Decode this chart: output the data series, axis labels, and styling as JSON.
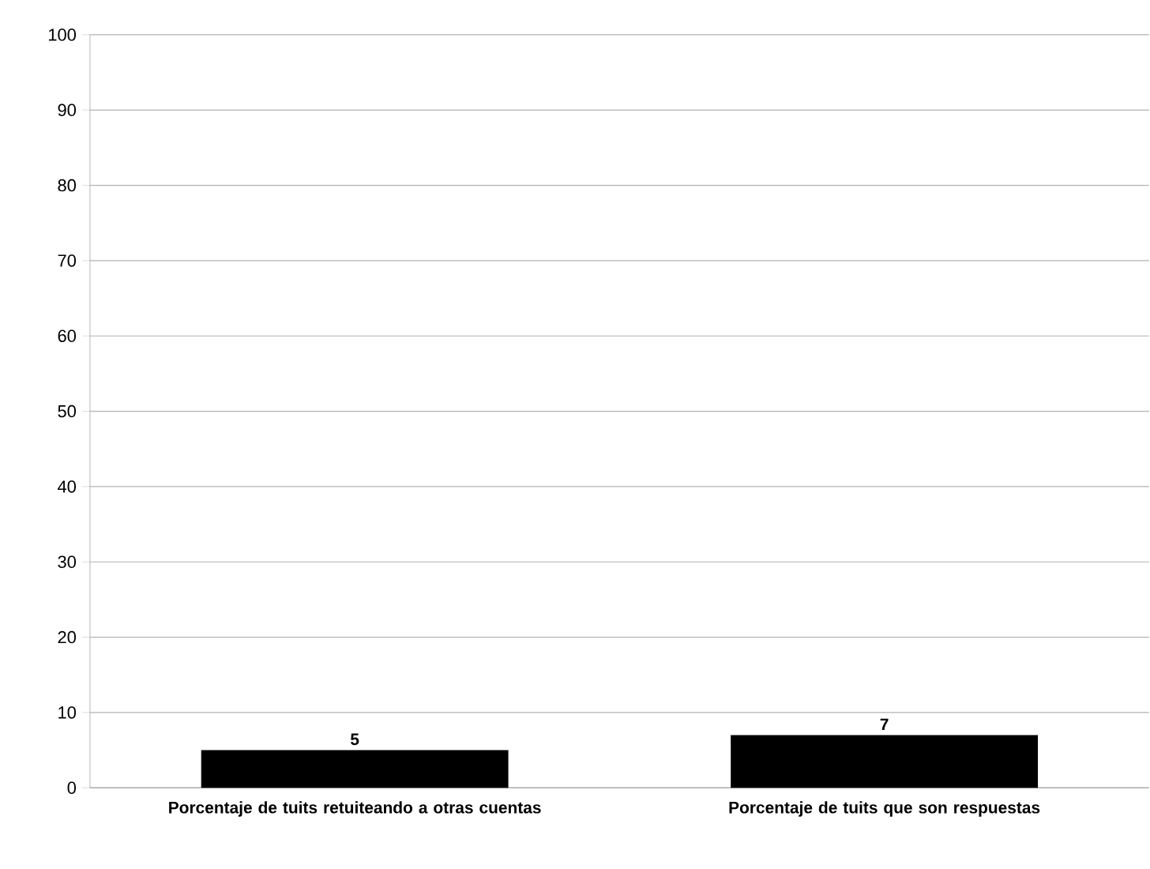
{
  "chart_data": {
    "type": "bar",
    "categories": [
      "Porcentaje de tuits retuiteando a otras cuentas",
      "Porcentaje de tuits que son respuestas"
    ],
    "values": [
      5,
      7
    ],
    "color": "#000000",
    "ylim": [
      0,
      100
    ],
    "yticks": [
      0,
      10,
      20,
      30,
      40,
      50,
      60,
      70,
      80,
      90,
      100
    ],
    "grid": "y",
    "data_labels": true
  }
}
